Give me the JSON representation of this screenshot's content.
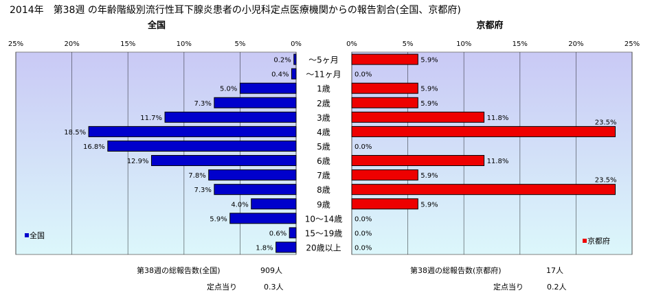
{
  "title": "2014年　第38週 の年齢階級別流行性耳下腺炎患者の小児科定点医療機関からの報告割合(全国、京都府)",
  "colors": {
    "national": "#0000cc",
    "kyoto": "#ee0000",
    "plot_bg_top": "#c9c9f5",
    "plot_bg_bottom": "#dcf7fb",
    "grid": "#000000"
  },
  "footer": {
    "national_total_label": "第38週の総報告数(全国)",
    "national_total_value": "909人",
    "national_per_label": "定点当り",
    "national_per_value": "0.3人",
    "kyoto_total_label": "第38週の総報告数(京都府)",
    "kyoto_total_value": "17人",
    "kyoto_per_label": "定点当り",
    "kyoto_per_value": "0.2人"
  },
  "chart_data": [
    {
      "type": "bar",
      "orientation": "horizontal",
      "direction": "reversed",
      "title": "全国",
      "xlim": [
        0,
        25
      ],
      "ticks": [
        "25%",
        "20%",
        "15%",
        "10%",
        "5%",
        "0%"
      ],
      "tick_values": [
        25,
        20,
        15,
        10,
        5,
        0
      ],
      "legend": {
        "label": "全国",
        "position": "bottom-left"
      },
      "categories": [
        "～5ヶ月",
        "～11ヶ月",
        "1歳",
        "2歳",
        "3歳",
        "4歳",
        "5歳",
        "6歳",
        "7歳",
        "8歳",
        "9歳",
        "10～14歳",
        "15～19歳",
        "20歳以上"
      ],
      "values": [
        0.2,
        0.4,
        5.0,
        7.3,
        11.7,
        18.5,
        16.8,
        12.9,
        7.8,
        7.3,
        4.0,
        5.9,
        0.6,
        1.8
      ],
      "labels": [
        "0.2%",
        "0.4%",
        "5.0%",
        "7.3%",
        "11.7%",
        "18.5%",
        "16.8%",
        "12.9%",
        "7.8%",
        "7.3%",
        "4.0%",
        "5.9%",
        "0.6%",
        "1.8%"
      ]
    },
    {
      "type": "bar",
      "orientation": "horizontal",
      "title": "京都府",
      "xlim": [
        0,
        25
      ],
      "ticks": [
        "0%",
        "5%",
        "10%",
        "15%",
        "20%",
        "25%"
      ],
      "tick_values": [
        0,
        5,
        10,
        15,
        20,
        25
      ],
      "legend": {
        "label": "京都府",
        "position": "bottom-right"
      },
      "categories": [
        "～5ヶ月",
        "～11ヶ月",
        "1歳",
        "2歳",
        "3歳",
        "4歳",
        "5歳",
        "6歳",
        "7歳",
        "8歳",
        "9歳",
        "10～14歳",
        "15～19歳",
        "20歳以上"
      ],
      "values": [
        5.9,
        0.0,
        5.9,
        5.9,
        11.8,
        23.5,
        0.0,
        11.8,
        5.9,
        23.5,
        5.9,
        0.0,
        0.0,
        0.0
      ],
      "labels": [
        "5.9%",
        "0.0%",
        "5.9%",
        "5.9%",
        "11.8%",
        "23.5%",
        "0.0%",
        "11.8%",
        "5.9%",
        "23.5%",
        "5.9%",
        "0.0%",
        "0.0%",
        "0.0%"
      ]
    }
  ]
}
